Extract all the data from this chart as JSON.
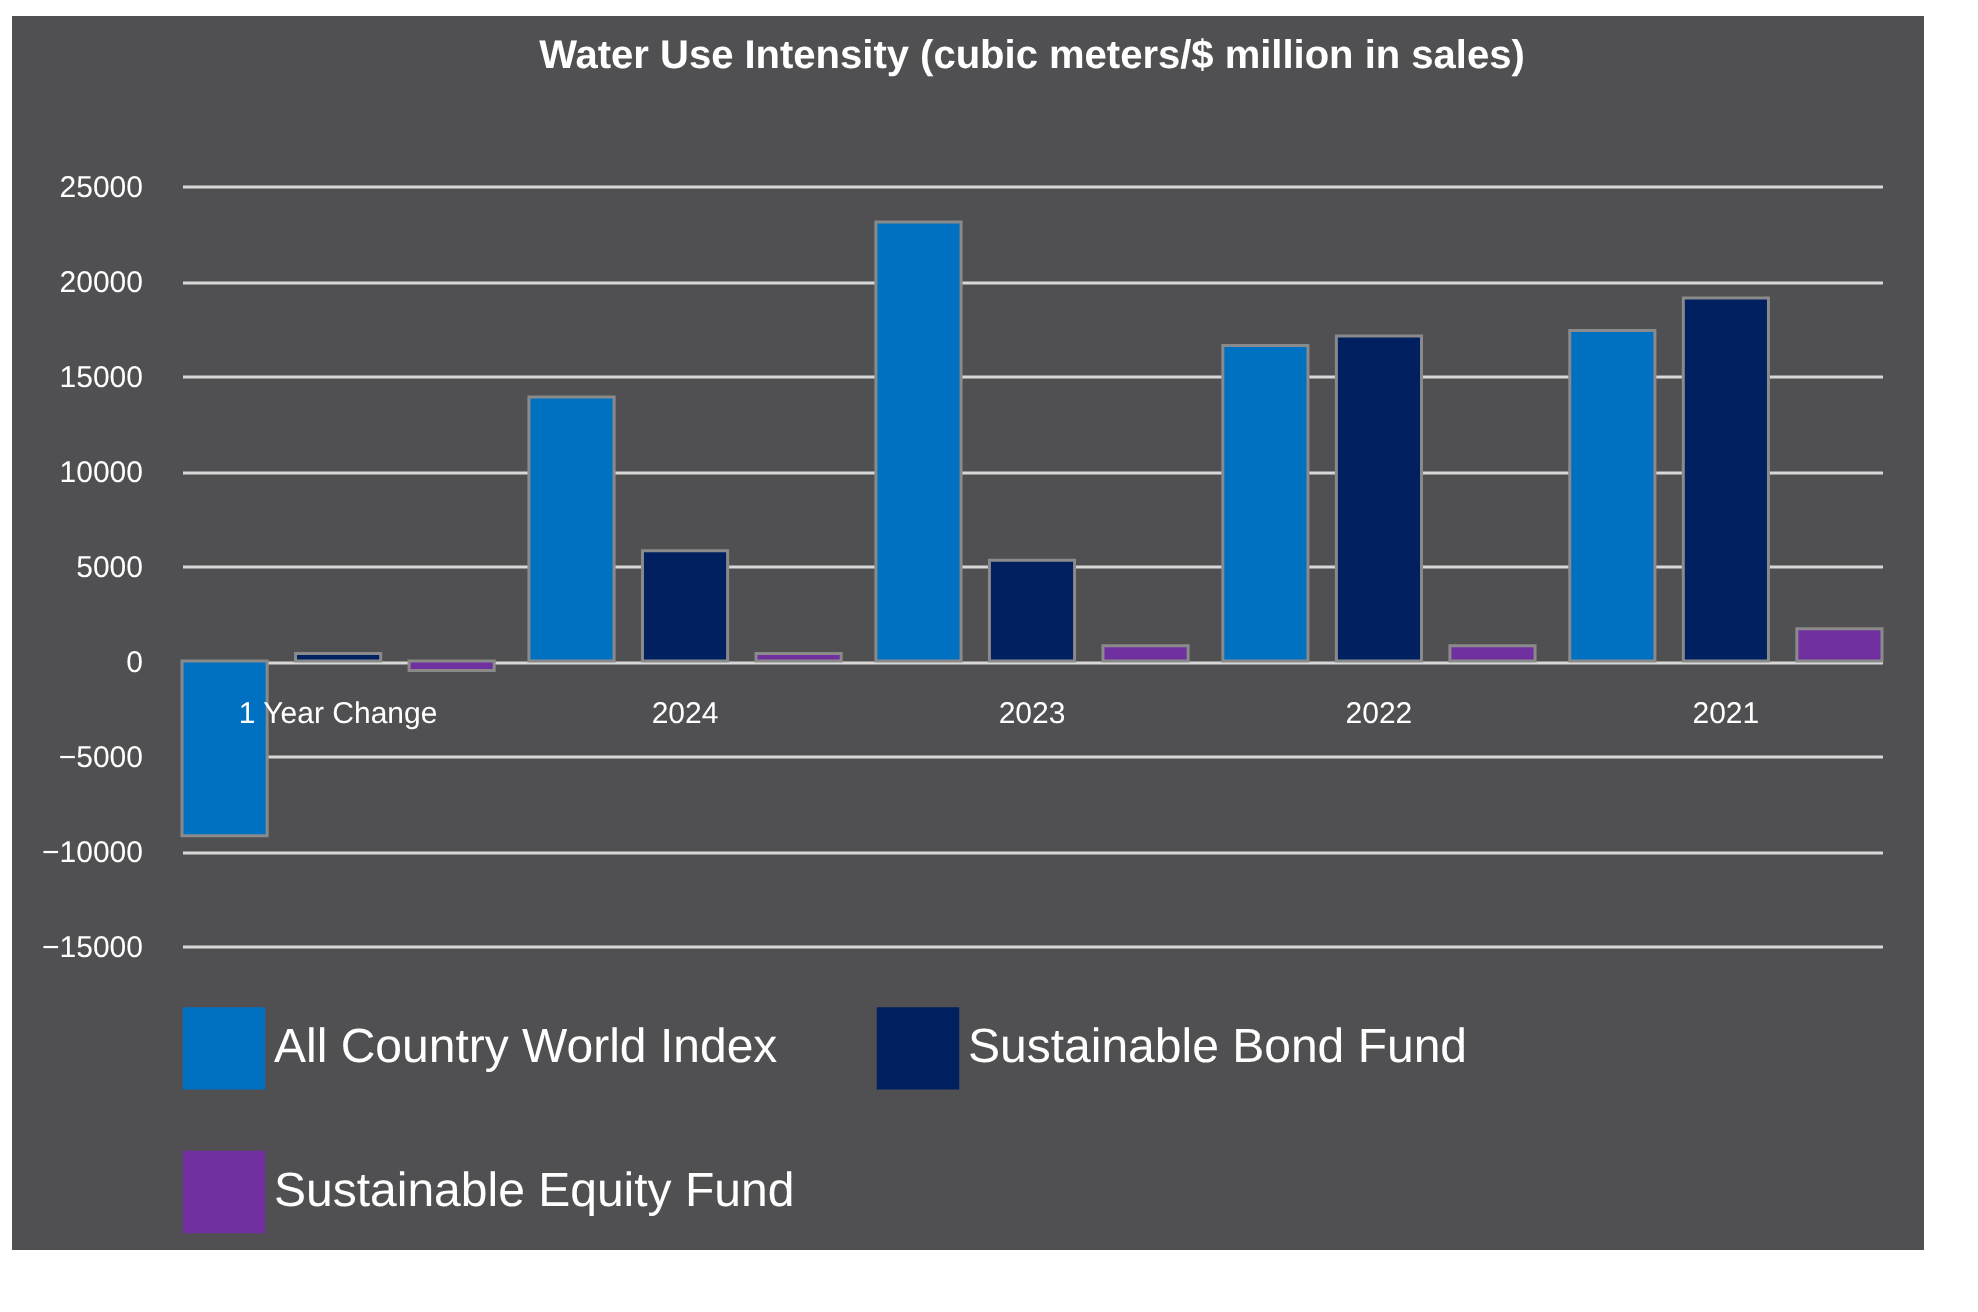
{
  "chart_data": {
    "type": "bar",
    "title": "Water Use Intensity (cubic meters/$ million in sales)",
    "categories": [
      "1 Year Change",
      "2024",
      "2023",
      "2022",
      "2021"
    ],
    "series": [
      {
        "name": "All Country World Index",
        "color": "#0070c0",
        "values": [
          -9200,
          13900,
          23100,
          16600,
          17400
        ]
      },
      {
        "name": "Sustainable Bond Fund",
        "color": "#002060",
        "values": [
          400,
          5800,
          5300,
          17100,
          19100
        ]
      },
      {
        "name": "Sustainable Equity Fund",
        "color": "#7030a0",
        "values": [
          -500,
          400,
          800,
          800,
          1700
        ]
      }
    ],
    "ylim": [
      -15000,
      25000
    ],
    "yticks": [
      -15000,
      -10000,
      -5000,
      0,
      5000,
      10000,
      15000,
      20000,
      25000
    ],
    "grid": "y",
    "legend": "bottom"
  }
}
